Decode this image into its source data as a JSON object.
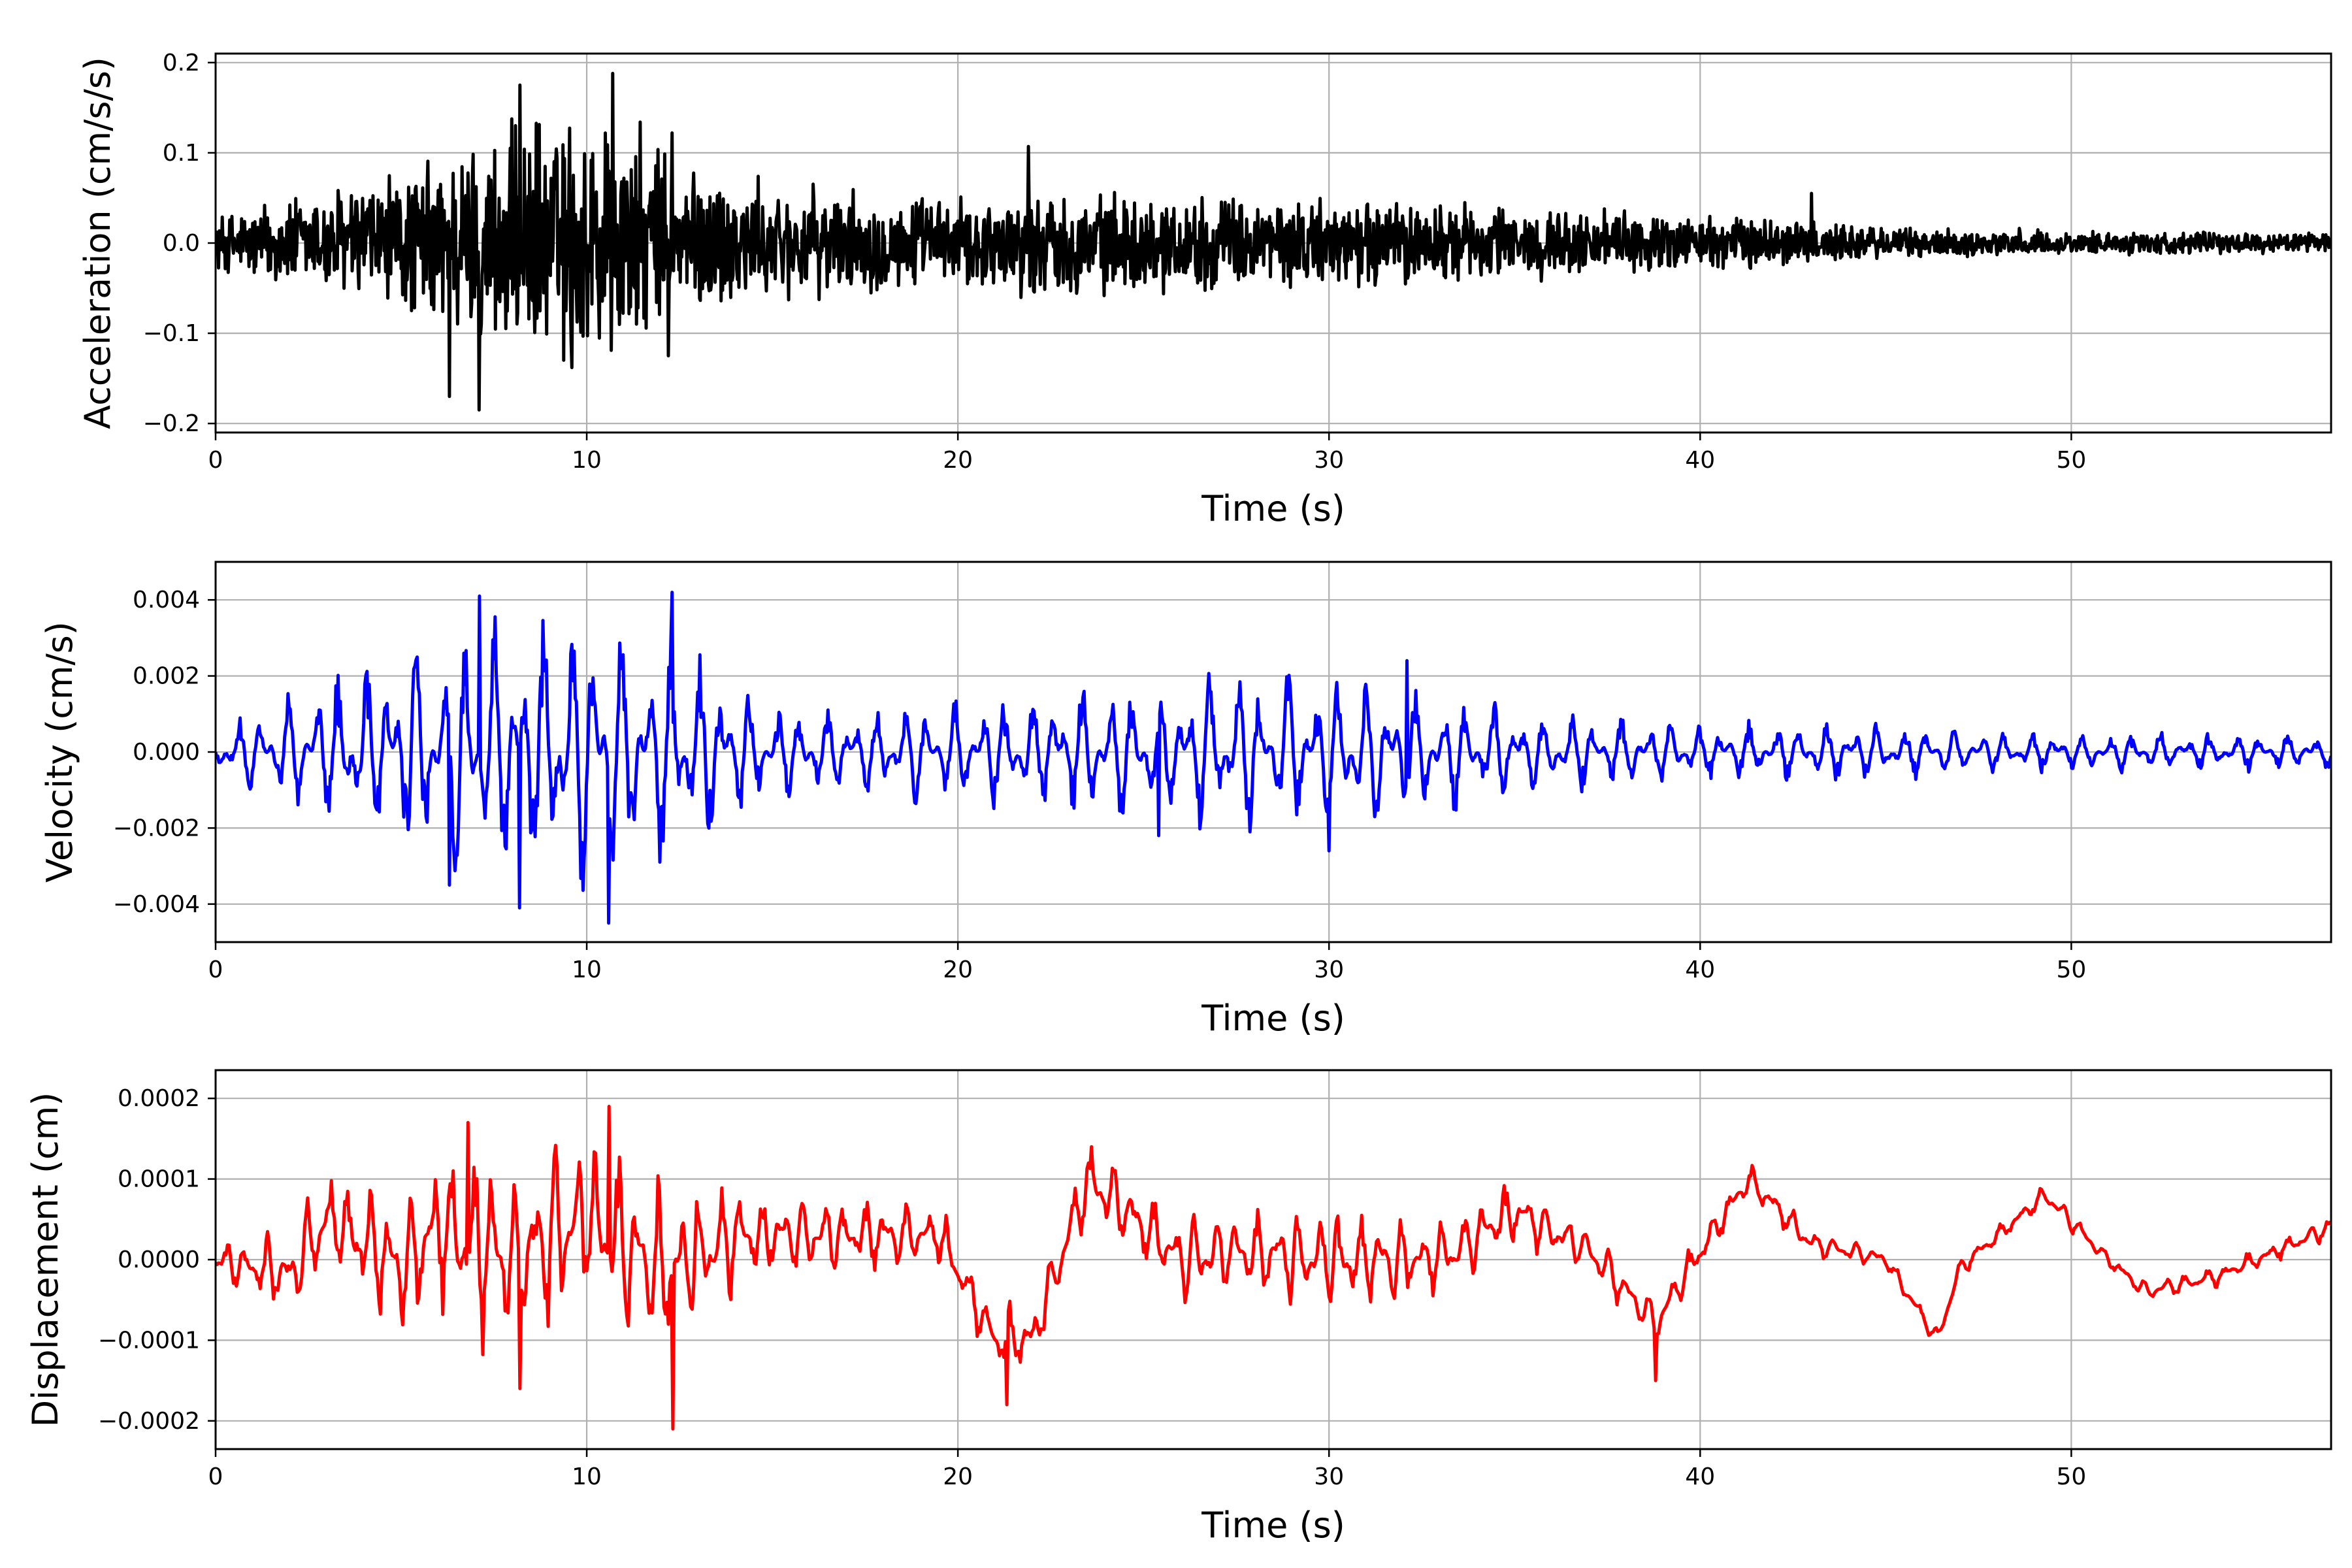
{
  "chart_data": [
    {
      "type": "line",
      "xlabel": "Time (s)",
      "ylabel": "Acceleration (cm/s/s)",
      "xlim": [
        0,
        57
      ],
      "ylim": [
        -0.21,
        0.21
      ],
      "xticks": [
        0,
        10,
        20,
        30,
        40,
        50
      ],
      "yticks": [
        -0.2,
        -0.1,
        0.0,
        0.1,
        0.2
      ],
      "ytick_labels": [
        "−0.2",
        "−0.1",
        "0.0",
        "0.1",
        "0.2"
      ],
      "grid": true,
      "series_color": "#000000",
      "envelope": {
        "t": [
          0,
          2,
          5,
          7,
          8.5,
          10.5,
          12.3,
          15,
          20,
          22,
          25,
          30,
          32,
          35,
          40,
          43,
          45,
          50,
          57
        ],
        "amplitude": [
          0.035,
          0.06,
          0.09,
          0.13,
          0.15,
          0.17,
          0.11,
          0.07,
          0.055,
          0.065,
          0.06,
          0.055,
          0.055,
          0.045,
          0.035,
          0.03,
          0.02,
          0.015,
          0.012
        ]
      },
      "peaks": [
        {
          "t": 7.1,
          "v": -0.185
        },
        {
          "t": 10.7,
          "v": 0.188
        },
        {
          "t": 8.2,
          "v": 0.175
        },
        {
          "t": 6.3,
          "v": -0.17
        },
        {
          "t": 12.3,
          "v": 0.122
        },
        {
          "t": 12.2,
          "v": -0.125
        },
        {
          "t": 9.6,
          "v": -0.138
        },
        {
          "t": 21.9,
          "v": 0.107
        },
        {
          "t": 43.0,
          "v": 0.055
        }
      ]
    },
    {
      "type": "line",
      "xlabel": "Time (s)",
      "ylabel": "Velocity (cm/s)",
      "xlim": [
        0,
        57
      ],
      "ylim": [
        -0.005,
        0.005
      ],
      "xticks": [
        0,
        10,
        20,
        30,
        40,
        50
      ],
      "yticks": [
        -0.004,
        -0.002,
        0.0,
        0.002,
        0.004
      ],
      "ytick_labels": [
        "−0.004",
        "−0.002",
        "0.000",
        "0.002",
        "0.004"
      ],
      "grid": true,
      "series_color": "#0000ff",
      "envelope": {
        "t": [
          0,
          2,
          5,
          7,
          10,
          12.3,
          15,
          20,
          24,
          27,
          30,
          32,
          35,
          40,
          44,
          48,
          57
        ],
        "amplitude": [
          0.0006,
          0.0015,
          0.0028,
          0.0035,
          0.0035,
          0.003,
          0.0012,
          0.0012,
          0.0018,
          0.002,
          0.0019,
          0.0018,
          0.0011,
          0.0007,
          0.0008,
          0.0005,
          0.0005
        ]
      },
      "peaks": [
        {
          "t": 10.6,
          "v": -0.0045
        },
        {
          "t": 12.3,
          "v": 0.0042
        },
        {
          "t": 7.1,
          "v": 0.0041
        },
        {
          "t": 8.2,
          "v": -0.0041
        },
        {
          "t": 6.3,
          "v": -0.0035
        },
        {
          "t": 30.0,
          "v": -0.0026
        },
        {
          "t": 25.4,
          "v": -0.0022
        },
        {
          "t": 32.1,
          "v": 0.0024
        }
      ]
    },
    {
      "type": "line",
      "xlabel": "Time (s)",
      "ylabel": "Displacement (cm)",
      "xlim": [
        0,
        57
      ],
      "ylim": [
        -0.000235,
        0.000235
      ],
      "xticks": [
        0,
        10,
        20,
        30,
        40,
        50
      ],
      "yticks": [
        -0.0002,
        -0.0001,
        0.0,
        0.0001,
        0.0002
      ],
      "ytick_labels": [
        "−0.0002",
        "−0.0001",
        "0.0000",
        "0.0001",
        "0.0002"
      ],
      "grid": true,
      "series_color": "#ff0000",
      "baseline": {
        "t": [
          0,
          2,
          3,
          5,
          6,
          8,
          10,
          12,
          14,
          17,
          19.5,
          21,
          22,
          23.5,
          26,
          28,
          30,
          33,
          35,
          37,
          38.8,
          40,
          41.3,
          43,
          45,
          46.4,
          47,
          49.3,
          51,
          52,
          54,
          57
        ],
        "v": [
          0.0,
          -2e-05,
          5e-05,
          -1e-05,
          4e-05,
          0.0,
          5e-05,
          -2e-05,
          3e-05,
          3e-05,
          3e-05,
          -0.0001,
          -0.0001,
          0.0001,
          0.0,
          1e-05,
          0.0,
          0.0,
          6e-05,
          1e-05,
          -8e-05,
          1e-05,
          0.0001,
          2e-05,
          0.0,
          -0.0001,
          -1e-05,
          8e-05,
          0.0,
          -4e-05,
          -2e-05,
          4e-05
        ]
      },
      "oscillation_amplitude": {
        "t": [
          0,
          5,
          8,
          10,
          12.3,
          15,
          20,
          25,
          30,
          35,
          40,
          45,
          50,
          57
        ],
        "amplitude": [
          2e-05,
          7e-05,
          0.0001,
          0.0001,
          8e-05,
          4e-05,
          3e-05,
          4e-05,
          5e-05,
          3e-05,
          2e-05,
          1e-05,
          1e-05,
          1e-05
        ]
      },
      "peaks": [
        {
          "t": 12.3,
          "v": -0.00021
        },
        {
          "t": 10.6,
          "v": 0.00019
        },
        {
          "t": 6.8,
          "v": 0.00017
        },
        {
          "t": 21.3,
          "v": -0.00018
        },
        {
          "t": 23.6,
          "v": 0.00014
        },
        {
          "t": 38.8,
          "v": -0.00015
        },
        {
          "t": 8.2,
          "v": -0.00016
        }
      ]
    }
  ]
}
